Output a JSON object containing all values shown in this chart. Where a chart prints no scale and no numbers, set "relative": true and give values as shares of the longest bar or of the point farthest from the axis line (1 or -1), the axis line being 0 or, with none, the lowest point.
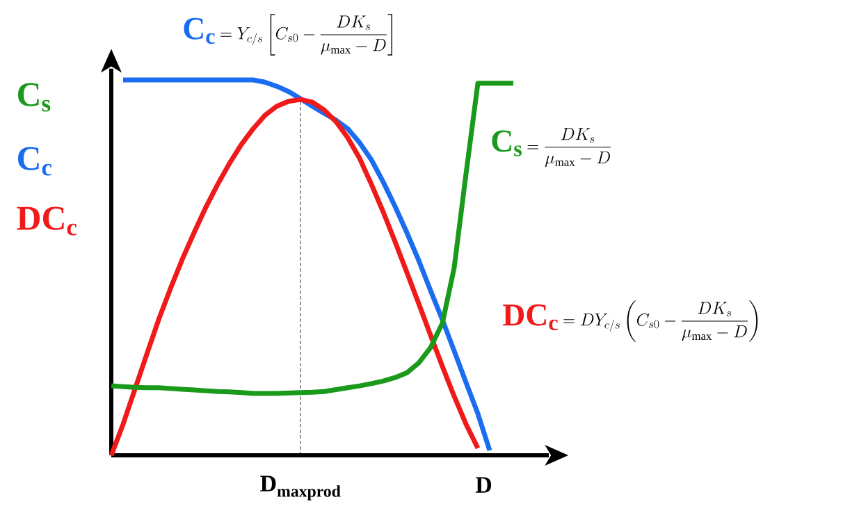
{
  "chart_data": {
    "type": "line",
    "relative": true,
    "xlabel": "D",
    "categories": [
      null,
      null,
      null,
      null,
      null,
      null,
      null,
      null,
      null,
      null,
      null,
      null,
      null,
      null,
      null,
      null,
      null,
      null,
      null,
      null,
      null,
      null,
      null,
      null,
      null,
      null,
      null,
      null,
      null,
      null,
      null,
      null,
      null,
      null,
      null
    ],
    "series": [
      {
        "name": "C$_{s}$",
        "color": "#1a9a1a",
        "values": [
          0.185,
          0.183,
          0.181,
          0.18,
          0.18,
          0.178,
          0.176,
          0.174,
          0.172,
          0.17,
          0.169,
          0.167,
          0.165,
          0.165,
          0.165,
          0.166,
          0.167,
          0.168,
          0.17,
          0.175,
          0.18,
          0.185,
          0.191,
          0.198,
          0.207,
          0.22,
          0.246,
          0.287,
          0.352,
          0.5,
          0.75,
          0.991,
          0.991,
          0.991,
          0.991
        ]
      },
      {
        "name": "C$_{c}$",
        "color": "#1a6cf0",
        "values": [
          null,
          1.0,
          1.0,
          1.0,
          1.0,
          1.0,
          1.0,
          1.0,
          1.0,
          1.0,
          1.0,
          1.0,
          1.0,
          0.994,
          0.983,
          0.969,
          0.95,
          0.93,
          0.911,
          0.893,
          0.87,
          0.833,
          0.787,
          0.728,
          0.663,
          0.593,
          0.519,
          0.439,
          0.361,
          0.278,
          0.194,
          0.111,
          0.013,
          null,
          null
        ]
      },
      {
        "name": "DC$_{c}$",
        "color": "#f01a1a",
        "values": [
          0,
          0.083,
          0.176,
          0.269,
          0.361,
          0.444,
          0.522,
          0.593,
          0.661,
          0.722,
          0.778,
          0.828,
          0.87,
          0.906,
          0.93,
          0.943,
          0.948,
          0.941,
          0.92,
          0.889,
          0.846,
          0.791,
          0.722,
          0.648,
          0.569,
          0.487,
          0.404,
          0.32,
          0.237,
          0.157,
          0.083,
          0.019,
          null,
          null,
          null
        ]
      }
    ],
    "annotations": [
      "= \\frac{DK_s}{\\mu_{\\max}-D}",
      "= Y_{c/s}\\left[C_{s0}-\\frac{DK_s}{\\mu_{\\max}-D}\\right]",
      "= DY_{c/s}\\left(C_{s0}-\\frac{DK_s}{\\mu_{\\max}-D}\\right)",
      "D$_{maxprod}$"
    ]
  }
}
